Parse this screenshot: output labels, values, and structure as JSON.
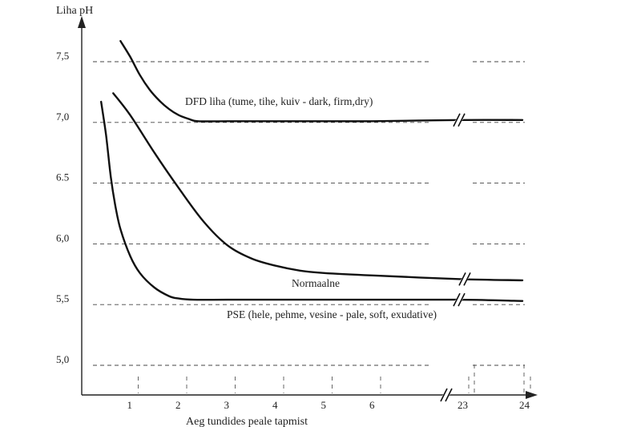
{
  "chart_data": {
    "type": "line",
    "ylabel": "Liha pH",
    "xlabel": "Aeg tundides peale tapmist",
    "y_ticks": [
      {
        "value": 7.5,
        "label": "7,5"
      },
      {
        "value": 7.0,
        "label": "7,0"
      },
      {
        "value": 6.5,
        "label": "6.5"
      },
      {
        "value": 6.0,
        "label": "6,0"
      },
      {
        "value": 5.5,
        "label": "5,5"
      },
      {
        "value": 5.0,
        "label": "5,0"
      }
    ],
    "x_ticks": [
      {
        "value": 1,
        "label": "1"
      },
      {
        "value": 2,
        "label": "2"
      },
      {
        "value": 3,
        "label": "3"
      },
      {
        "value": 4,
        "label": "4"
      },
      {
        "value": 5,
        "label": "5"
      },
      {
        "value": 6,
        "label": "6"
      },
      {
        "value": 23,
        "label": "23"
      },
      {
        "value": 24,
        "label": "24"
      }
    ],
    "ylim": [
      4.7,
      8.0
    ],
    "axis_break": {
      "between": [
        7,
        23
      ]
    },
    "grid": "dashed",
    "series": [
      {
        "name": "DFD liha (tume, tihe, kuiv - dark, firm,dry)",
        "x": [
          0.8,
          1.0,
          1.2,
          1.4,
          1.6,
          1.8,
          2.0,
          2.2,
          2.4,
          3,
          4,
          5,
          6,
          23,
          24
        ],
        "y": [
          7.67,
          7.54,
          7.39,
          7.27,
          7.18,
          7.11,
          7.06,
          7.03,
          7.01,
          7.01,
          7.01,
          7.01,
          7.01,
          7.02,
          7.02
        ]
      },
      {
        "name": "Normaalne",
        "x": [
          0.65,
          1.0,
          1.5,
          2.0,
          2.5,
          3.0,
          3.5,
          4.0,
          4.5,
          5.0,
          6.0,
          23,
          24
        ],
        "y": [
          7.24,
          7.06,
          6.75,
          6.46,
          6.19,
          5.99,
          5.88,
          5.82,
          5.78,
          5.76,
          5.74,
          5.71,
          5.7
        ],
        "label_x": 4.6,
        "label_y": 5.66
      },
      {
        "name": "PSE (hele, pehme, vesine - pale, soft, exudative)",
        "x": [
          0.4,
          0.5,
          0.6,
          0.7,
          0.8,
          1.0,
          1.2,
          1.5,
          1.8,
          2.0,
          2.3,
          3,
          4,
          5,
          6,
          23,
          24
        ],
        "y": [
          7.17,
          6.9,
          6.55,
          6.3,
          6.12,
          5.9,
          5.76,
          5.64,
          5.57,
          5.55,
          5.54,
          5.54,
          5.54,
          5.54,
          5.54,
          5.54,
          5.53
        ],
        "label_x": 3.15,
        "label_y": 5.42
      }
    ]
  }
}
